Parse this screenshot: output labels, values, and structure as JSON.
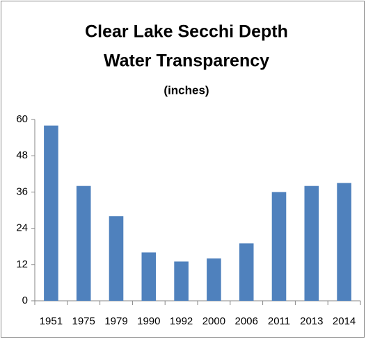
{
  "chart_data": {
    "type": "bar",
    "title": "Clear Lake Secchi Depth",
    "subtitle": "Water Transparency",
    "unit_label": "(inches)",
    "categories": [
      "1951",
      "1975",
      "1979",
      "1990",
      "1992",
      "2000",
      "2006",
      "2011",
      "2013",
      "2014"
    ],
    "values": [
      58,
      38,
      28,
      16,
      13,
      14,
      19,
      36,
      38,
      39
    ],
    "color": "#4f81bd",
    "ylim": [
      0,
      60
    ],
    "yticks": [
      0,
      12,
      24,
      36,
      48,
      60
    ],
    "grid": false
  }
}
